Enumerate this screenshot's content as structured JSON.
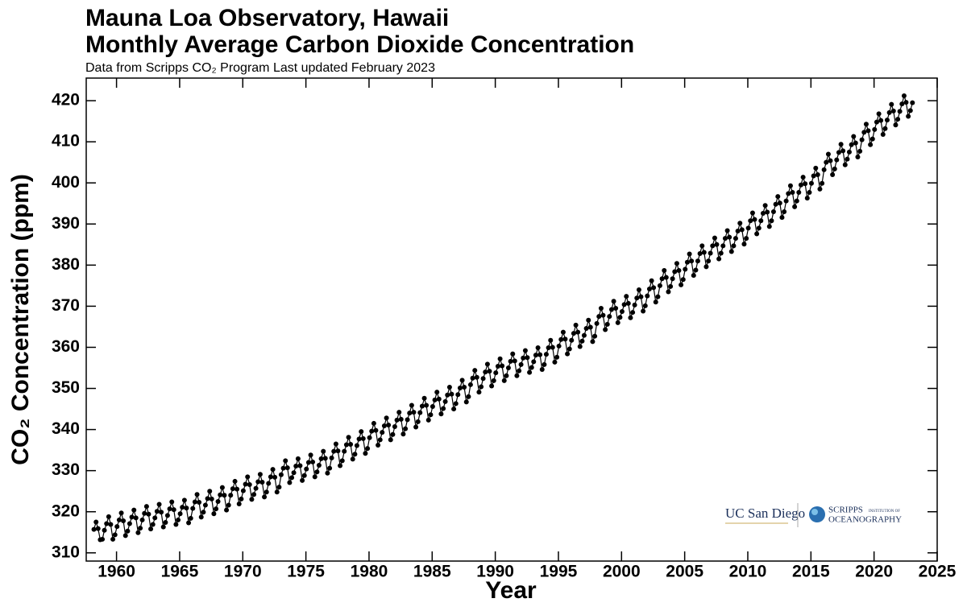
{
  "chart_data": {
    "type": "line",
    "title": "Mauna Loa Observatory, Hawaii",
    "subtitle": "Monthly Average Carbon Dioxide Concentration",
    "note": "Data from Scripps CO₂ Program   Last updated February 2023",
    "xlabel": "Year",
    "ylabel": "CO₂ Concentration (ppm)",
    "logos": {
      "ucsd": "UC San Diego",
      "scripps": "SCRIPPS",
      "institution": "INSTITUTION OF",
      "oceanography": "OCEANOGRAPHY"
    },
    "color": "#000000",
    "markers": true,
    "xlim": [
      1957.6,
      2025
    ],
    "ylim": [
      308,
      425.5
    ],
    "xticks": [
      1960,
      1965,
      1970,
      1975,
      1980,
      1985,
      1990,
      1995,
      2000,
      2005,
      2010,
      2015,
      2020,
      2025
    ],
    "yticks": [
      310,
      320,
      330,
      340,
      350,
      360,
      370,
      380,
      390,
      400,
      410,
      420
    ],
    "x": [
      1958.21,
      1958.38,
      1958.54,
      1958.71,
      1958.88,
      1959.04,
      1959.21,
      1959.38,
      1959.54,
      1959.71,
      1959.88,
      1960.04,
      1960.21,
      1960.38,
      1960.54,
      1960.71,
      1960.88,
      1961.04,
      1961.21,
      1961.38,
      1961.54,
      1961.71,
      1961.88,
      1962.04,
      1962.21,
      1962.38,
      1962.54,
      1962.71,
      1962.88,
      1963.04,
      1963.21,
      1963.38,
      1963.54,
      1963.71,
      1963.88,
      1964.04,
      1964.21,
      1964.38,
      1964.54,
      1964.71,
      1964.88,
      1965.04,
      1965.21,
      1965.38,
      1965.54,
      1965.71,
      1965.88,
      1966.04,
      1966.21,
      1966.38,
      1966.54,
      1966.71,
      1966.88,
      1967.04,
      1967.21,
      1967.38,
      1967.54,
      1967.71,
      1967.88,
      1968.04,
      1968.21,
      1968.38,
      1968.54,
      1968.71,
      1968.88,
      1969.04,
      1969.21,
      1969.38,
      1969.54,
      1969.71,
      1969.88,
      1970.04,
      1970.21,
      1970.38,
      1970.54,
      1970.71,
      1970.88,
      1971.04,
      1971.21,
      1971.38,
      1971.54,
      1971.71,
      1971.88,
      1972.04,
      1972.21,
      1972.38,
      1972.54,
      1972.71,
      1972.88,
      1973.04,
      1973.21,
      1973.38,
      1973.54,
      1973.71,
      1973.88,
      1974.04,
      1974.21,
      1974.38,
      1974.54,
      1974.71,
      1974.88,
      1975.04,
      1975.21,
      1975.38,
      1975.54,
      1975.71,
      1975.88,
      1976.04,
      1976.21,
      1976.38,
      1976.54,
      1976.71,
      1976.88,
      1977.04,
      1977.21,
      1977.38,
      1977.54,
      1977.71,
      1977.88,
      1978.04,
      1978.21,
      1978.38,
      1978.54,
      1978.71,
      1978.88,
      1979.04,
      1979.21,
      1979.38,
      1979.54,
      1979.71,
      1979.88,
      1980.04,
      1980.21,
      1980.38,
      1980.54,
      1980.71,
      1980.88,
      1981.04,
      1981.21,
      1981.38,
      1981.54,
      1981.71,
      1981.88,
      1982.04,
      1982.21,
      1982.38,
      1982.54,
      1982.71,
      1982.88,
      1983.04,
      1983.21,
      1983.38,
      1983.54,
      1983.71,
      1983.88,
      1984.04,
      1984.21,
      1984.38,
      1984.54,
      1984.71,
      1984.88,
      1985.04,
      1985.21,
      1985.38,
      1985.54,
      1985.71,
      1985.88,
      1986.04,
      1986.21,
      1986.38,
      1986.54,
      1986.71,
      1986.88,
      1987.04,
      1987.21,
      1987.38,
      1987.54,
      1987.71,
      1987.88,
      1988.04,
      1988.21,
      1988.38,
      1988.54,
      1988.71,
      1988.88,
      1989.04,
      1989.21,
      1989.38,
      1989.54,
      1989.71,
      1989.88,
      1990.04,
      1990.21,
      1990.38,
      1990.54,
      1990.71,
      1990.88,
      1991.04,
      1991.21,
      1991.38,
      1991.54,
      1991.71,
      1991.88,
      1992.04,
      1992.21,
      1992.38,
      1992.54,
      1992.71,
      1992.88,
      1993.04,
      1993.21,
      1993.38,
      1993.54,
      1993.71,
      1993.88,
      1994.04,
      1994.21,
      1994.38,
      1994.54,
      1994.71,
      1994.88,
      1995.04,
      1995.21,
      1995.38,
      1995.54,
      1995.71,
      1995.88,
      1996.04,
      1996.21,
      1996.38,
      1996.54,
      1996.71,
      1996.88,
      1997.04,
      1997.21,
      1997.38,
      1997.54,
      1997.71,
      1997.88,
      1998.04,
      1998.21,
      1998.38,
      1998.54,
      1998.71,
      1998.88,
      1999.04,
      1999.21,
      1999.38,
      1999.54,
      1999.71,
      1999.88,
      2000.04,
      2000.21,
      2000.38,
      2000.54,
      2000.71,
      2000.88,
      2001.04,
      2001.21,
      2001.38,
      2001.54,
      2001.71,
      2001.88,
      2002.04,
      2002.21,
      2002.38,
      2002.54,
      2002.71,
      2002.88,
      2003.04,
      2003.21,
      2003.38,
      2003.54,
      2003.71,
      2003.88,
      2004.04,
      2004.21,
      2004.38,
      2004.54,
      2004.71,
      2004.88,
      2005.04,
      2005.21,
      2005.38,
      2005.54,
      2005.71,
      2005.88,
      2006.04,
      2006.21,
      2006.38,
      2006.54,
      2006.71,
      2006.88,
      2007.04,
      2007.21,
      2007.38,
      2007.54,
      2007.71,
      2007.88,
      2008.04,
      2008.21,
      2008.38,
      2008.54,
      2008.71,
      2008.88,
      2009.04,
      2009.21,
      2009.38,
      2009.54,
      2009.71,
      2009.88,
      2010.04,
      2010.21,
      2010.38,
      2010.54,
      2010.71,
      2010.88,
      2011.04,
      2011.21,
      2011.38,
      2011.54,
      2011.71,
      2011.88,
      2012.04,
      2012.21,
      2012.38,
      2012.54,
      2012.71,
      2012.88,
      2013.04,
      2013.21,
      2013.38,
      2013.54,
      2013.71,
      2013.88,
      2014.04,
      2014.21,
      2014.38,
      2014.54,
      2014.71,
      2014.88,
      2015.04,
      2015.21,
      2015.38,
      2015.54,
      2015.71,
      2015.88,
      2016.04,
      2016.21,
      2016.38,
      2016.54,
      2016.71,
      2016.88,
      2017.04,
      2017.21,
      2017.38,
      2017.54,
      2017.71,
      2017.88,
      2018.04,
      2018.21,
      2018.38,
      2018.54,
      2018.71,
      2018.88,
      2019.04,
      2019.21,
      2019.38,
      2019.54,
      2019.71,
      2019.88,
      2020.04,
      2020.21,
      2020.38,
      2020.54,
      2020.71,
      2020.88,
      2021.04,
      2021.21,
      2021.38,
      2021.54,
      2021.71,
      2021.88,
      2022.04,
      2022.21,
      2022.38,
      2022.54,
      2022.71,
      2022.88,
      2023.04
    ],
    "values": [
      315.7,
      317.5,
      315.9,
      313.2,
      313.3,
      315.5,
      317.1,
      318.8,
      316.9,
      313.3,
      314.4,
      316.4,
      318.0,
      319.7,
      317.8,
      314.2,
      315.3,
      317.1,
      318.7,
      320.4,
      318.5,
      314.9,
      316.0,
      318.0,
      319.6,
      321.3,
      319.4,
      315.8,
      316.9,
      318.5,
      320.1,
      321.8,
      319.9,
      316.3,
      317.4,
      319.1,
      320.7,
      322.4,
      320.5,
      316.9,
      318.0,
      319.5,
      321.1,
      322.8,
      320.9,
      317.3,
      318.4,
      320.8,
      322.4,
      324.2,
      322.3,
      318.7,
      319.9,
      321.6,
      323.2,
      325.0,
      323.1,
      319.5,
      320.7,
      322.5,
      324.1,
      325.9,
      324.0,
      320.4,
      321.6,
      324.0,
      325.6,
      327.4,
      325.5,
      321.9,
      323.1,
      325.1,
      326.7,
      328.5,
      326.6,
      323.0,
      324.2,
      325.7,
      327.3,
      329.1,
      327.2,
      323.6,
      324.8,
      326.9,
      328.5,
      330.3,
      328.4,
      324.8,
      326.0,
      329.0,
      330.6,
      332.4,
      330.7,
      327.1,
      328.3,
      329.5,
      331.1,
      332.9,
      331.2,
      327.6,
      328.8,
      330.4,
      332.0,
      333.8,
      332.1,
      328.5,
      329.7,
      331.3,
      332.9,
      334.7,
      333.0,
      329.4,
      330.6,
      333.1,
      334.7,
      336.5,
      334.8,
      331.2,
      332.4,
      334.7,
      336.3,
      338.1,
      336.4,
      332.8,
      334.0,
      336.1,
      337.7,
      339.5,
      337.8,
      334.2,
      335.4,
      338.0,
      339.6,
      341.5,
      339.8,
      336.2,
      337.5,
      339.3,
      340.9,
      342.8,
      341.1,
      337.5,
      338.8,
      340.7,
      342.3,
      344.2,
      342.5,
      338.9,
      340.2,
      342.4,
      344.0,
      345.9,
      344.2,
      340.6,
      341.9,
      344.1,
      345.7,
      347.6,
      345.9,
      342.3,
      343.6,
      345.6,
      347.2,
      349.1,
      347.4,
      343.8,
      345.1,
      346.8,
      348.4,
      350.3,
      348.6,
      345.0,
      346.3,
      348.5,
      350.1,
      352.0,
      350.3,
      346.7,
      348.0,
      350.9,
      352.5,
      354.4,
      352.7,
      349.1,
      350.4,
      352.4,
      354.0,
      355.9,
      354.2,
      350.6,
      351.9,
      353.8,
      355.4,
      357.2,
      355.5,
      351.9,
      353.1,
      355.0,
      356.6,
      358.4,
      356.7,
      353.1,
      354.3,
      355.8,
      357.4,
      359.2,
      357.5,
      353.9,
      355.1,
      356.5,
      358.1,
      359.9,
      358.2,
      354.6,
      355.8,
      358.3,
      359.9,
      361.7,
      360.0,
      356.4,
      357.6,
      360.3,
      361.9,
      363.7,
      362.0,
      358.4,
      359.6,
      361.7,
      363.4,
      365.4,
      363.7,
      360.2,
      361.5,
      362.9,
      364.6,
      366.6,
      364.9,
      361.4,
      362.7,
      365.8,
      367.5,
      369.5,
      367.8,
      364.3,
      365.6,
      367.5,
      369.2,
      371.2,
      369.5,
      366.0,
      367.3,
      368.7,
      370.4,
      372.4,
      370.7,
      367.2,
      368.5,
      370.3,
      372.0,
      374.0,
      372.3,
      368.8,
      370.1,
      372.5,
      374.2,
      376.2,
      374.5,
      371.0,
      372.3,
      375.0,
      376.7,
      378.7,
      377.0,
      373.5,
      374.8,
      376.7,
      378.4,
      380.4,
      378.7,
      375.2,
      376.5,
      379.0,
      380.7,
      382.7,
      381.0,
      377.5,
      378.8,
      381.0,
      382.8,
      384.7,
      383.1,
      379.6,
      381.0,
      382.9,
      384.7,
      386.6,
      385.0,
      381.5,
      382.9,
      384.7,
      386.5,
      388.4,
      386.8,
      383.3,
      384.7,
      386.5,
      388.3,
      390.2,
      388.6,
      385.1,
      386.5,
      389.0,
      390.8,
      392.7,
      391.1,
      387.6,
      389.0,
      390.8,
      392.6,
      394.5,
      392.9,
      389.4,
      390.8,
      393.0,
      394.8,
      396.7,
      395.1,
      391.6,
      393.0,
      395.6,
      397.4,
      399.3,
      397.7,
      394.2,
      395.6,
      397.7,
      399.5,
      401.4,
      399.8,
      396.3,
      397.7,
      399.9,
      401.7,
      403.6,
      402.0,
      398.5,
      399.9,
      403.2,
      405.0,
      407.0,
      405.4,
      402.0,
      403.4,
      405.6,
      407.4,
      409.4,
      407.8,
      404.4,
      405.8,
      407.5,
      409.3,
      411.3,
      409.7,
      406.3,
      407.7,
      410.5,
      412.3,
      414.3,
      412.7,
      409.3,
      410.7,
      413.0,
      414.8,
      416.8,
      415.2,
      411.8,
      413.2,
      415.3,
      417.1,
      419.1,
      417.5,
      414.1,
      415.5,
      417.4,
      419.2,
      421.2,
      419.6,
      416.2,
      417.6,
      419.5
    ]
  }
}
